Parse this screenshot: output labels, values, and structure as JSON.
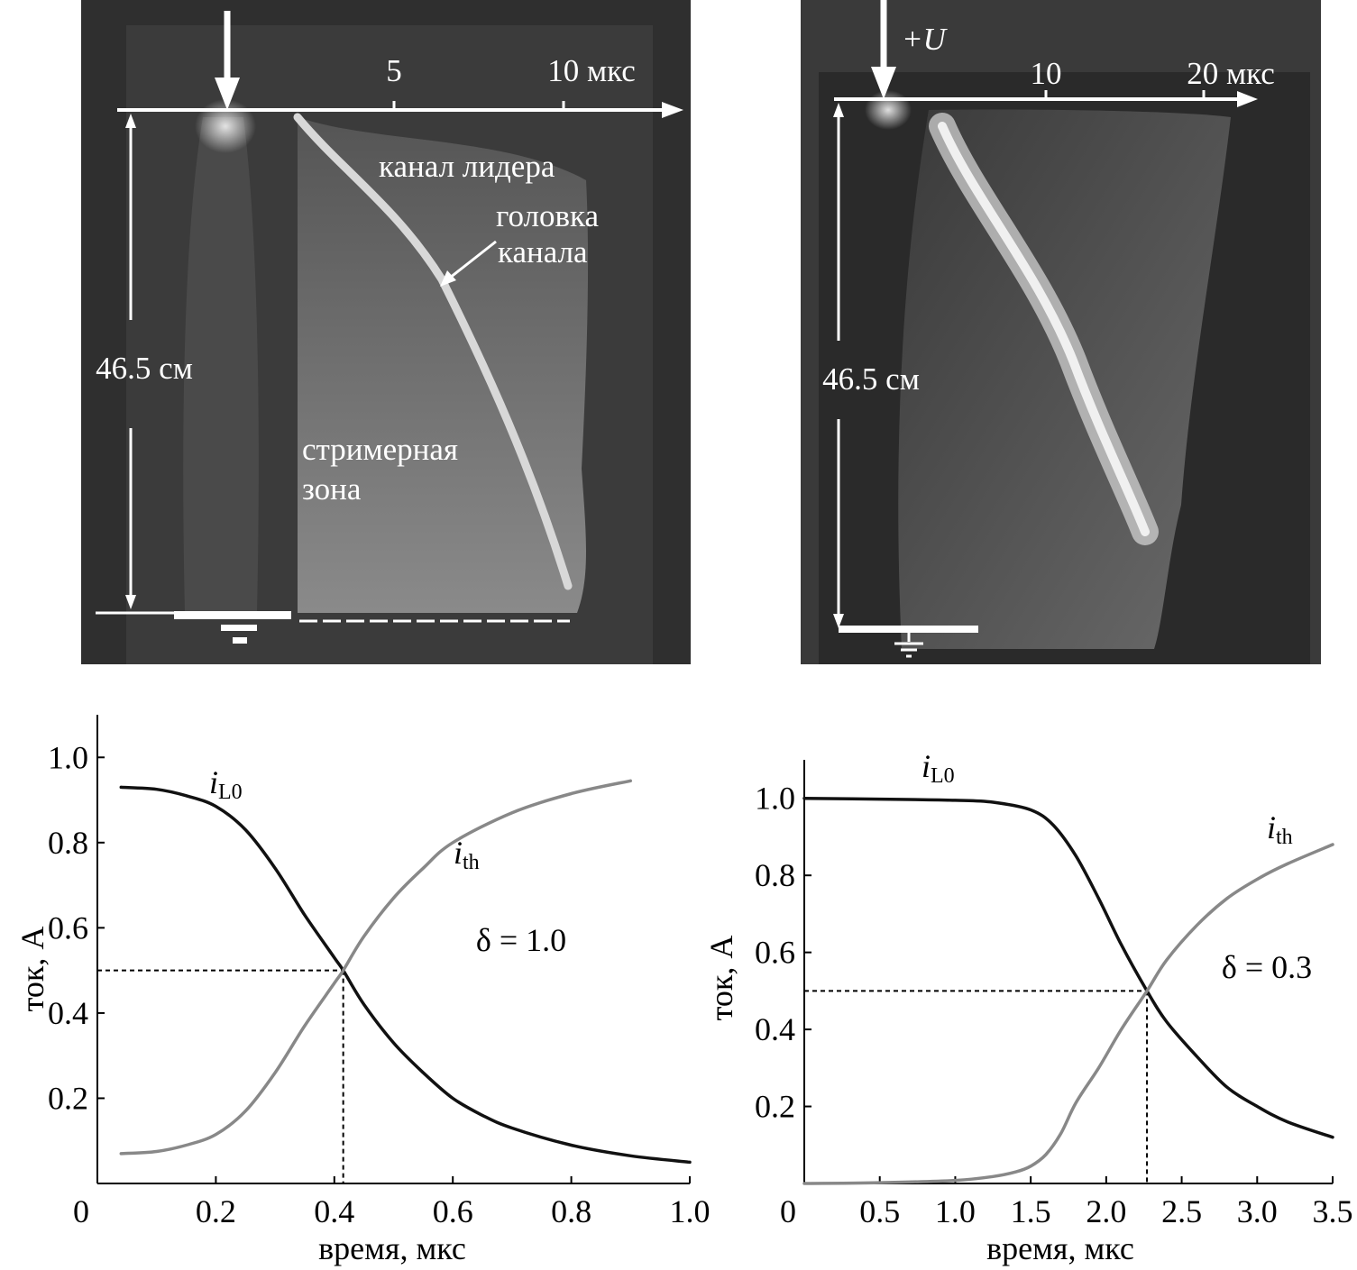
{
  "photos": [
    {
      "time_ticks": [
        "5",
        "10 мкс"
      ],
      "distance_label": "46.5 см",
      "labels": [
        "канал лидера",
        "головка",
        "канала",
        "стримерная",
        "зона"
      ]
    },
    {
      "voltage_label": "+U",
      "time_ticks": [
        "10",
        "20 мкс"
      ],
      "distance_label": "46.5 см"
    }
  ],
  "chart_data": [
    {
      "type": "line",
      "xlabel": "время, мкс",
      "ylabel": "ток, А",
      "xlim": [
        0,
        1.0
      ],
      "ylim": [
        0,
        1.1
      ],
      "xticks": [
        "0",
        "0.2",
        "0.4",
        "0.6",
        "0.8",
        "1.0"
      ],
      "yticks": [
        "0.2",
        "0.4",
        "0.6",
        "0.8",
        "1.0"
      ],
      "annotation": "δ = 1.0",
      "crossing": {
        "x": 0.415,
        "y": 0.5
      },
      "series": [
        {
          "name": "i_L0",
          "label_main": "i",
          "label_sub": "L0",
          "color": "#111111",
          "x": [
            0.04,
            0.1,
            0.15,
            0.2,
            0.25,
            0.3,
            0.35,
            0.4,
            0.415,
            0.45,
            0.5,
            0.55,
            0.6,
            0.65,
            0.7,
            0.8,
            0.9,
            1.0
          ],
          "y": [
            0.93,
            0.925,
            0.91,
            0.885,
            0.83,
            0.74,
            0.63,
            0.53,
            0.5,
            0.42,
            0.33,
            0.26,
            0.2,
            0.16,
            0.13,
            0.09,
            0.065,
            0.05
          ]
        },
        {
          "name": "i_th",
          "label_main": "i",
          "label_sub": "th",
          "color": "#888888",
          "x": [
            0.04,
            0.1,
            0.15,
            0.2,
            0.25,
            0.3,
            0.35,
            0.4,
            0.415,
            0.45,
            0.5,
            0.55,
            0.6,
            0.7,
            0.8,
            0.9
          ],
          "y": [
            0.07,
            0.075,
            0.09,
            0.115,
            0.17,
            0.26,
            0.37,
            0.47,
            0.5,
            0.58,
            0.67,
            0.74,
            0.8,
            0.87,
            0.915,
            0.945
          ]
        }
      ]
    },
    {
      "type": "line",
      "xlabel": "время, мкс",
      "ylabel": "ток, А",
      "xlim": [
        0,
        3.5
      ],
      "ylim": [
        0,
        1.1
      ],
      "xticks": [
        "0",
        "0.5",
        "1.0",
        "1.5",
        "2.0",
        "2.5",
        "3.0",
        "3.5"
      ],
      "yticks": [
        "0.2",
        "0.4",
        "0.6",
        "0.8",
        "1.0"
      ],
      "annotation": "δ = 0.3",
      "crossing": {
        "x": 2.27,
        "y": 0.5
      },
      "series": [
        {
          "name": "i_L0",
          "label_main": "i",
          "label_sub": "L0",
          "color": "#111111",
          "x": [
            0.0,
            0.5,
            1.0,
            1.25,
            1.5,
            1.65,
            1.8,
            1.95,
            2.1,
            2.27,
            2.4,
            2.6,
            2.8,
            3.0,
            3.2,
            3.5
          ],
          "y": [
            1.0,
            0.998,
            0.995,
            0.99,
            0.97,
            0.93,
            0.85,
            0.74,
            0.62,
            0.5,
            0.42,
            0.33,
            0.25,
            0.2,
            0.16,
            0.12
          ]
        },
        {
          "name": "i_th",
          "label_main": "i",
          "label_sub": "th",
          "color": "#888888",
          "x": [
            0.0,
            0.5,
            1.0,
            1.25,
            1.4,
            1.5,
            1.6,
            1.7,
            1.8,
            1.95,
            2.1,
            2.27,
            2.4,
            2.6,
            2.8,
            3.0,
            3.2,
            3.5
          ],
          "y": [
            0.0,
            0.002,
            0.008,
            0.018,
            0.03,
            0.045,
            0.075,
            0.13,
            0.21,
            0.3,
            0.4,
            0.5,
            0.58,
            0.67,
            0.74,
            0.79,
            0.83,
            0.88
          ]
        }
      ]
    }
  ]
}
